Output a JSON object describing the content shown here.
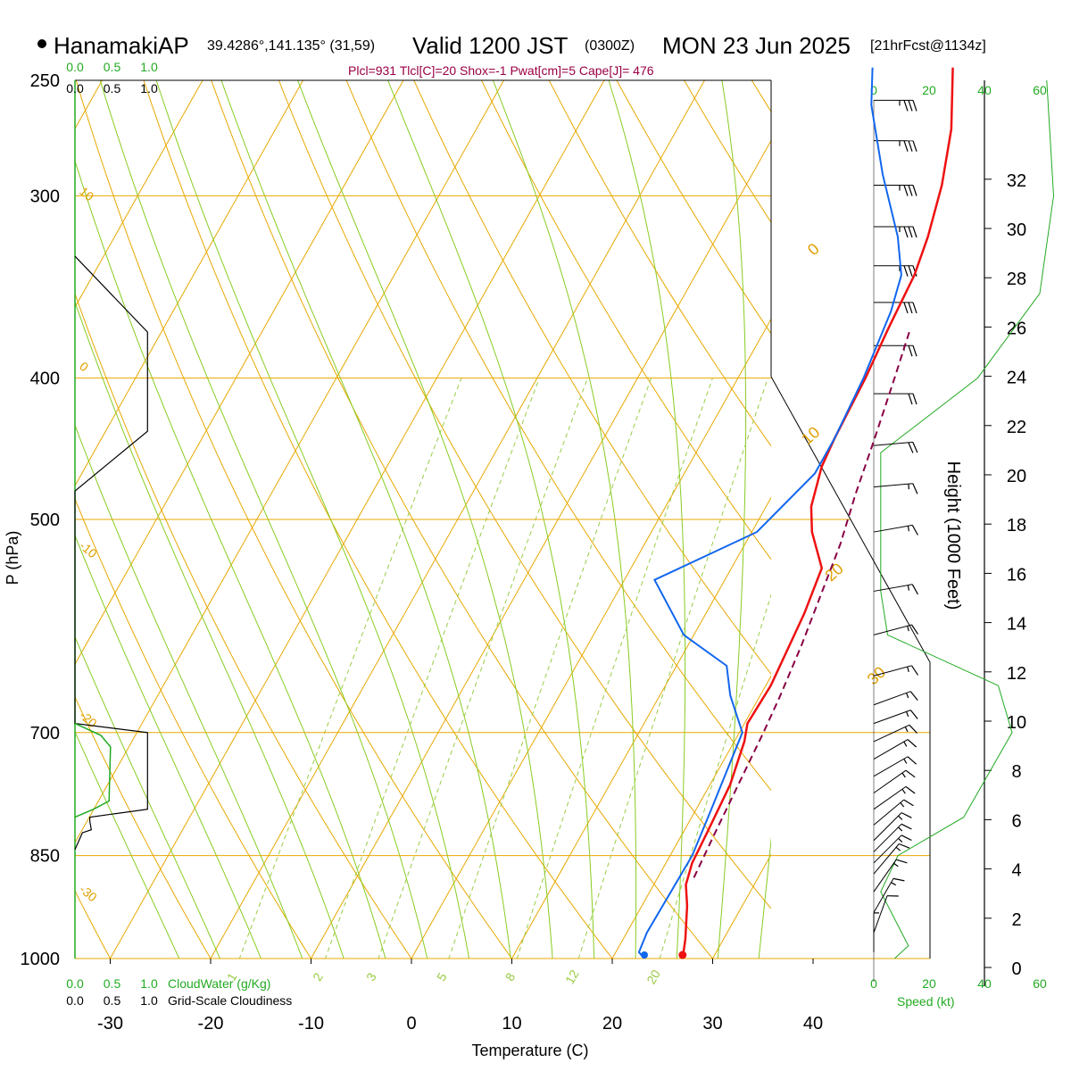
{
  "header": {
    "station": "HanamakiAP",
    "coords": "39.4286°,141.135° (31,59)",
    "valid": "Valid 1200 JST",
    "zulu": "(0300Z)",
    "date": "MON 23 Jun 2025",
    "forecast": "[21hrFcst@1134z]",
    "params": "Plcl=931 Tlcl[C]=20 Shox=-1 Pwat[cm]=5 Cape[J]= 476"
  },
  "colors": {
    "temperature": "#ee1111",
    "dewpoint": "#1166ee",
    "parcel": "#880044",
    "isotherm": "#e8a800",
    "dry_adiabat": "#e8a800",
    "moist_adiabat": "#88cc22",
    "mixing_ratio": "#99cc44",
    "cloud_water": "#22aa22",
    "height_curve": "#22aa22"
  },
  "chart_data": {
    "type": "line",
    "xlabel": "Temperature (C)",
    "ylabel": "P (hPa)",
    "y2label": "Height (1000 Feet)",
    "x_ticks": [
      -30,
      -20,
      -10,
      0,
      10,
      20,
      30,
      40
    ],
    "pressure_ticks": [
      250,
      300,
      400,
      500,
      700,
      850,
      1000
    ],
    "height_ticks": [
      0,
      2,
      4,
      6,
      8,
      10,
      12,
      14,
      16,
      18,
      20,
      22,
      24,
      26,
      28,
      30,
      32
    ],
    "cloud_ticks": [
      "0.0",
      "0.5",
      "1.0"
    ],
    "cloud_water_label": "CloudWater (g/Kg)",
    "cloudiness_label": "Grid-Scale Cloudiness",
    "speed_ticks": [
      "0",
      "20",
      "40",
      "60"
    ],
    "speed_label": "Speed (kt)",
    "isotherm_labels": [
      "0",
      "10",
      "20",
      "30"
    ],
    "dry_adiabat_labels": [
      "10",
      "0",
      "-10",
      "-20",
      "-30"
    ],
    "mixing_ratio_labels": [
      "1",
      "2",
      "3",
      "5",
      "8",
      "12",
      "20"
    ],
    "series": [
      {
        "name": "temperature",
        "points": [
          [
            27.0,
            1000
          ],
          [
            26.2,
            970
          ],
          [
            24.5,
            920
          ],
          [
            23.2,
            890
          ],
          [
            22.6,
            860
          ],
          [
            22.4,
            820
          ],
          [
            22.0,
            760
          ],
          [
            21.0,
            710
          ],
          [
            20.3,
            690
          ],
          [
            20.5,
            650
          ],
          [
            20.0,
            600
          ],
          [
            19.8,
            580
          ],
          [
            19.0,
            540
          ],
          [
            16.0,
            510
          ],
          [
            14.5,
            490
          ],
          [
            13.3,
            460
          ],
          [
            13.0,
            440
          ],
          [
            12.7,
            400
          ],
          [
            12.2,
            370
          ],
          [
            11.8,
            340
          ],
          [
            11.0,
            320
          ],
          [
            9.5,
            295
          ],
          [
            7.3,
            270
          ],
          [
            4.0,
            245
          ]
        ]
      },
      {
        "name": "dewpoint",
        "points": [
          [
            23.2,
            1000
          ],
          [
            22.3,
            990
          ],
          [
            22.0,
            960
          ],
          [
            22.1,
            900
          ],
          [
            22.2,
            850
          ],
          [
            21.5,
            790
          ],
          [
            20.3,
            700
          ],
          [
            17.0,
            660
          ],
          [
            15.0,
            630
          ],
          [
            9.0,
            600
          ],
          [
            3.0,
            550
          ],
          [
            10.5,
            510
          ],
          [
            13.0,
            465
          ],
          [
            13.0,
            440
          ],
          [
            12.5,
            400
          ],
          [
            11.5,
            360
          ],
          [
            10.5,
            340
          ],
          [
            8.0,
            320
          ],
          [
            3.0,
            290
          ],
          [
            -2.0,
            260
          ],
          [
            -4.0,
            245
          ]
        ]
      },
      {
        "name": "parcel",
        "points": [
          [
            23.6,
            880
          ],
          [
            23.2,
            820
          ],
          [
            22.4,
            700
          ],
          [
            22.0,
            660
          ],
          [
            21.3,
            610
          ],
          [
            19.5,
            520
          ],
          [
            18.2,
            480
          ],
          [
            17.0,
            440
          ],
          [
            15.6,
            400
          ],
          [
            14.4,
            370
          ]
        ]
      }
    ],
    "cloudiness_profile": [
      [
        0,
        330
      ],
      [
        0.98,
        372
      ],
      [
        0.98,
        435
      ],
      [
        0,
        478
      ],
      [
        0,
        690
      ],
      [
        0.98,
        700
      ],
      [
        0.98,
        790
      ],
      [
        0.2,
        800
      ],
      [
        0.2,
        805
      ],
      [
        0.22,
        816
      ],
      [
        0.1,
        820
      ],
      [
        0,
        842
      ]
    ],
    "cloud_water_profile": [
      [
        0,
        690
      ],
      [
        0.35,
        703
      ],
      [
        0.48,
        716
      ],
      [
        0.46,
        780
      ],
      [
        0.25,
        790
      ],
      [
        0,
        800
      ]
    ],
    "height_profile": [
      [
        0.3,
        1000
      ],
      [
        0.5,
        980
      ],
      [
        0.1,
        900
      ],
      [
        0.35,
        850
      ],
      [
        1.3,
        800
      ],
      [
        2.0,
        700
      ],
      [
        1.8,
        650
      ],
      [
        0.2,
        600
      ],
      [
        0.1,
        560
      ],
      [
        0.1,
        450
      ],
      [
        1.5,
        400
      ],
      [
        2.4,
        350
      ],
      [
        2.6,
        300
      ],
      [
        2.5,
        250
      ]
    ],
    "wind_barbs": [
      {
        "p": 990,
        "dir": 180,
        "spd": 5
      },
      {
        "p": 960,
        "dir": 200,
        "spd": 10
      },
      {
        "p": 930,
        "dir": 210,
        "spd": 15
      },
      {
        "p": 900,
        "dir": 215,
        "spd": 15
      },
      {
        "p": 875,
        "dir": 220,
        "spd": 15
      },
      {
        "p": 860,
        "dir": 225,
        "spd": 15
      },
      {
        "p": 845,
        "dir": 225,
        "spd": 15
      },
      {
        "p": 830,
        "dir": 225,
        "spd": 15
      },
      {
        "p": 810,
        "dir": 230,
        "spd": 15
      },
      {
        "p": 790,
        "dir": 235,
        "spd": 15
      },
      {
        "p": 770,
        "dir": 235,
        "spd": 15
      },
      {
        "p": 750,
        "dir": 240,
        "spd": 15
      },
      {
        "p": 730,
        "dir": 240,
        "spd": 15
      },
      {
        "p": 710,
        "dir": 245,
        "spd": 15
      },
      {
        "p": 690,
        "dir": 250,
        "spd": 15
      },
      {
        "p": 670,
        "dir": 250,
        "spd": 15
      },
      {
        "p": 640,
        "dir": 255,
        "spd": 15
      },
      {
        "p": 600,
        "dir": 255,
        "spd": 15
      },
      {
        "p": 560,
        "dir": 260,
        "spd": 15
      },
      {
        "p": 510,
        "dir": 260,
        "spd": 15
      },
      {
        "p": 475,
        "dir": 265,
        "spd": 15
      },
      {
        "p": 445,
        "dir": 265,
        "spd": 20
      },
      {
        "p": 410,
        "dir": 270,
        "spd": 20
      },
      {
        "p": 380,
        "dir": 270,
        "spd": 25
      },
      {
        "p": 355,
        "dir": 270,
        "spd": 30
      },
      {
        "p": 335,
        "dir": 270,
        "spd": 35
      },
      {
        "p": 315,
        "dir": 270,
        "spd": 35
      },
      {
        "p": 295,
        "dir": 270,
        "spd": 35
      },
      {
        "p": 275,
        "dir": 270,
        "spd": 35
      },
      {
        "p": 258,
        "dir": 270,
        "spd": 35
      }
    ]
  }
}
